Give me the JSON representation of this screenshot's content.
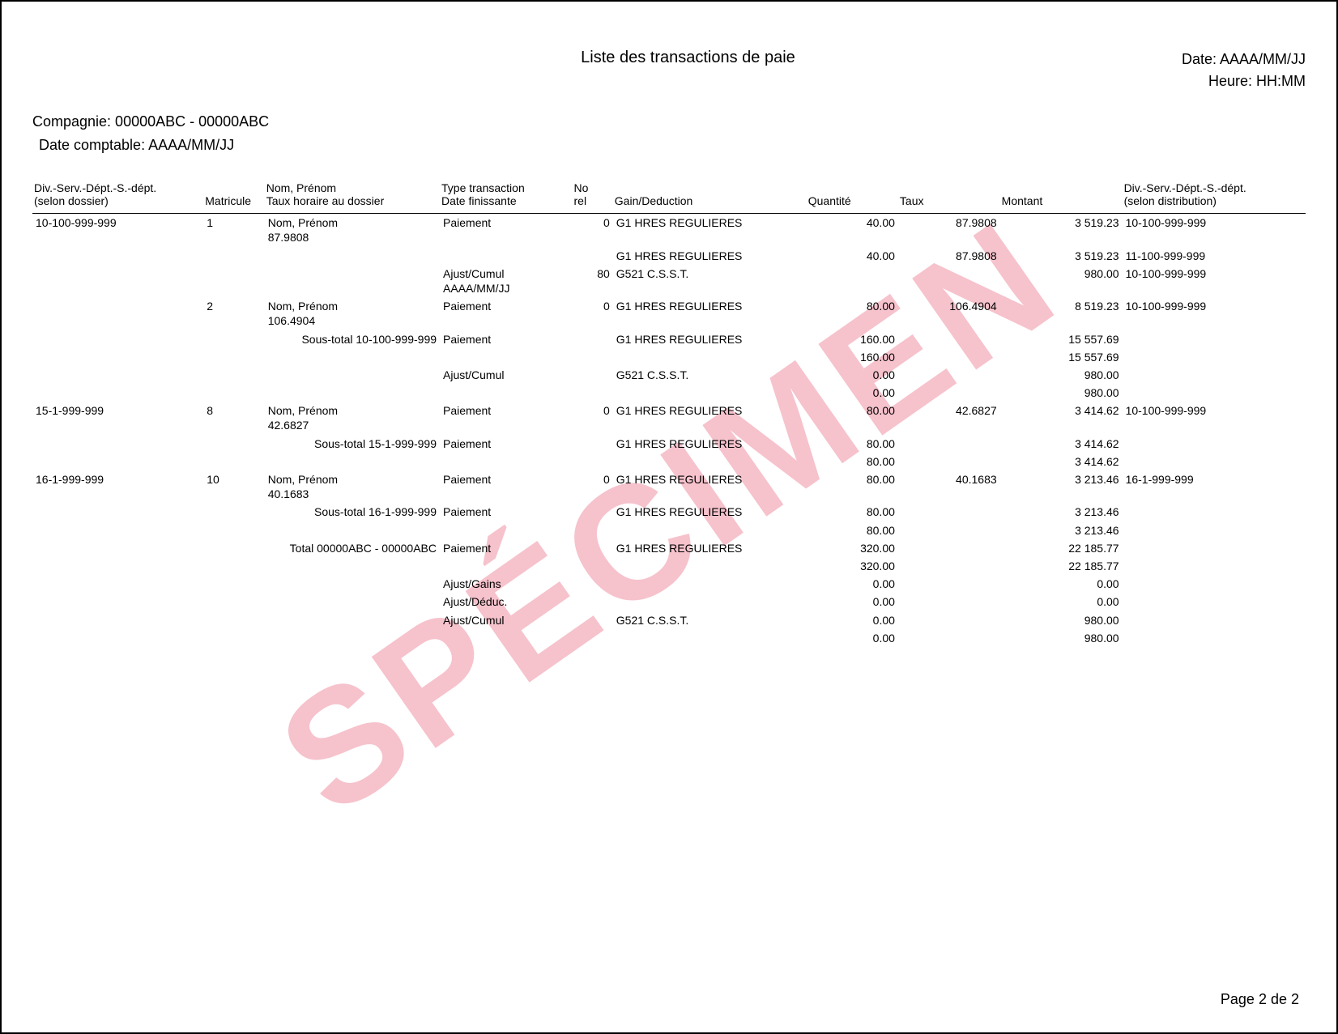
{
  "watermark": "SPÉCIMEN",
  "title": "Liste des transactions de paie",
  "date_label": "Date: AAAA/MM/JJ",
  "time_label": "Heure: HH:MM",
  "company_line": "Compagnie: 00000ABC - 00000ABC",
  "accounting_date_line": "Date comptable: AAAA/MM/JJ",
  "page_footer": "Page 2 de 2",
  "headers": {
    "div1": "Div.-Serv.-Dépt.-S.-dépt.",
    "div2": "(selon dossier)",
    "mat": "Matricule",
    "nom1": "Nom, Prénom",
    "nom2": "Taux horaire au dossier",
    "type1": "Type transaction",
    "type2": "Date finissante",
    "no1": "No",
    "no2": "rel",
    "gd": "Gain/Deduction",
    "qte": "Quantité",
    "taux": "Taux",
    "mont": "Montant",
    "dist1": "Div.-Serv.-Dépt.-S.-dépt.",
    "dist2": "(selon distribution)"
  },
  "rows": [
    {
      "cls": "",
      "div": "10-100-999-999",
      "mat": "1",
      "nom": "Nom, Prénom",
      "nom2": "87.9808",
      "type": "Paiement",
      "norel": "0",
      "gd": "G1 HRES REGULIERES",
      "qte": "40.00",
      "taux": "87.9808",
      "mont": "3 519.23",
      "dist": "10-100-999-999"
    },
    {
      "cls": "",
      "div": "",
      "mat": "",
      "nom": "",
      "nom2": "",
      "type": "",
      "norel": "",
      "gd": "G1 HRES REGULIERES",
      "qte": "40.00",
      "taux": "87.9808",
      "mont": "3 519.23",
      "dist": "11-100-999-999"
    },
    {
      "cls": "",
      "div": "",
      "mat": "",
      "nom": "",
      "nom2": "",
      "type": "Ajust/Cumul",
      "type2": "AAAA/MM/JJ",
      "norel": "80",
      "gd": "G521 C.S.S.T.",
      "qte": "",
      "taux": "",
      "mont": "980.00",
      "dist": "10-100-999-999"
    },
    {
      "cls": "",
      "div": "",
      "mat": "2",
      "nom": "Nom, Prénom",
      "nom2": "106.4904",
      "type": "Paiement",
      "norel": "0",
      "gd": "G1 HRES REGULIERES",
      "qte": "80.00",
      "taux": "106.4904",
      "mont": "8 519.23",
      "dist": "10-100-999-999"
    },
    {
      "cls": "section-gap",
      "div": "",
      "mat": "",
      "nom_right": "Sous-total 10-100-999-999",
      "type": "Paiement",
      "norel": "",
      "gd": "G1 HRES REGULIERES",
      "qte": "160.00",
      "taux": "",
      "mont": "15 557.69",
      "dist": ""
    },
    {
      "cls": "",
      "div": "",
      "mat": "",
      "nom": "",
      "type": "",
      "norel": "",
      "gd": "",
      "qte": "160.00",
      "taux": "",
      "mont": "15 557.69",
      "dist": ""
    },
    {
      "cls": "",
      "div": "",
      "mat": "",
      "nom": "",
      "type": "Ajust/Cumul",
      "norel": "",
      "gd": "G521 C.S.S.T.",
      "qte": "0.00",
      "taux": "",
      "mont": "980.00",
      "dist": ""
    },
    {
      "cls": "",
      "div": "",
      "mat": "",
      "nom": "",
      "type": "",
      "norel": "",
      "gd": "",
      "qte": "0.00",
      "taux": "",
      "mont": "980.00",
      "dist": ""
    },
    {
      "cls": "big-gap",
      "div": "15-1-999-999",
      "mat": "8",
      "nom": "Nom, Prénom",
      "nom2": "42.6827",
      "type": "Paiement",
      "norel": "0",
      "gd": "G1 HRES REGULIERES",
      "qte": "80.00",
      "taux": "42.6827",
      "mont": "3 414.62",
      "dist": "10-100-999-999"
    },
    {
      "cls": "section-gap",
      "div": "",
      "mat": "",
      "nom_right": "Sous-total 15-1-999-999",
      "type": "Paiement",
      "norel": "",
      "gd": "G1 HRES REGULIERES",
      "qte": "80.00",
      "taux": "",
      "mont": "3 414.62",
      "dist": ""
    },
    {
      "cls": "",
      "div": "",
      "mat": "",
      "nom": "",
      "type": "",
      "norel": "",
      "gd": "",
      "qte": "80.00",
      "taux": "",
      "mont": "3 414.62",
      "dist": ""
    },
    {
      "cls": "big-gap",
      "div": "16-1-999-999",
      "mat": "10",
      "nom": "Nom, Prénom",
      "nom2": "40.1683",
      "type": "Paiement",
      "norel": "0",
      "gd": "G1 HRES REGULIERES",
      "qte": "80.00",
      "taux": "40.1683",
      "mont": "3 213.46",
      "dist": "16-1-999-999"
    },
    {
      "cls": "section-gap",
      "div": "",
      "mat": "",
      "nom_right": "Sous-total 16-1-999-999",
      "type": "Paiement",
      "norel": "",
      "gd": "G1 HRES REGULIERES",
      "qte": "80.00",
      "taux": "",
      "mont": "3 213.46",
      "dist": ""
    },
    {
      "cls": "",
      "div": "",
      "mat": "",
      "nom": "",
      "type": "",
      "norel": "",
      "gd": "",
      "qte": "80.00",
      "taux": "",
      "mont": "3 213.46",
      "dist": ""
    },
    {
      "cls": "section-gap",
      "div": "",
      "mat": "",
      "nom_right": "Total 00000ABC - 00000ABC",
      "type": "Paiement",
      "norel": "",
      "gd": "G1 HRES REGULIERES",
      "qte": "320.00",
      "taux": "",
      "mont": "22 185.77",
      "dist": ""
    },
    {
      "cls": "",
      "div": "",
      "mat": "",
      "nom": "",
      "type": "",
      "norel": "",
      "gd": "",
      "qte": "320.00",
      "taux": "",
      "mont": "22 185.77",
      "dist": ""
    },
    {
      "cls": "big-gap",
      "div": "",
      "mat": "",
      "nom": "",
      "type": "Ajust/Gains",
      "norel": "",
      "gd": "",
      "qte": "0.00",
      "taux": "",
      "mont": "0.00",
      "dist": ""
    },
    {
      "cls": "section-gap",
      "div": "",
      "mat": "",
      "nom": "",
      "type": "Ajust/Déduc.",
      "norel": "",
      "gd": "",
      "qte": "0.00",
      "taux": "",
      "mont": "0.00",
      "dist": ""
    },
    {
      "cls": "",
      "div": "",
      "mat": "",
      "nom": "",
      "type": "Ajust/Cumul",
      "norel": "",
      "gd": "G521 C.S.S.T.",
      "qte": "0.00",
      "taux": "",
      "mont": "980.00",
      "dist": ""
    },
    {
      "cls": "",
      "div": "",
      "mat": "",
      "nom": "",
      "type": "",
      "norel": "",
      "gd": "",
      "qte": "0.00",
      "taux": "",
      "mont": "980.00",
      "dist": ""
    }
  ]
}
